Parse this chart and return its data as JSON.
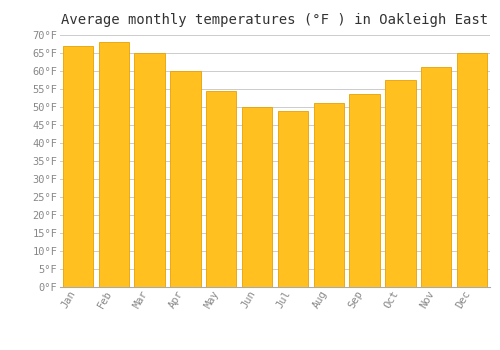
{
  "title": "Average monthly temperatures (°F ) in Oakleigh East",
  "months": [
    "Jan",
    "Feb",
    "Mar",
    "Apr",
    "May",
    "Jun",
    "Jul",
    "Aug",
    "Sep",
    "Oct",
    "Nov",
    "Dec"
  ],
  "values": [
    67,
    68,
    65,
    60,
    54.5,
    50,
    49,
    51,
    53.5,
    57.5,
    61,
    65
  ],
  "bar_color": "#FFC020",
  "bar_edge_color": "#E8A000",
  "ylim": [
    0,
    70
  ],
  "ytick_step": 5,
  "background_color": "#FFFFFF",
  "grid_color": "#CCCCCC",
  "title_fontsize": 10,
  "tick_fontsize": 7.5,
  "tick_color": "#888888",
  "title_color": "#333333",
  "title_font": "monospace",
  "bar_width": 0.85
}
